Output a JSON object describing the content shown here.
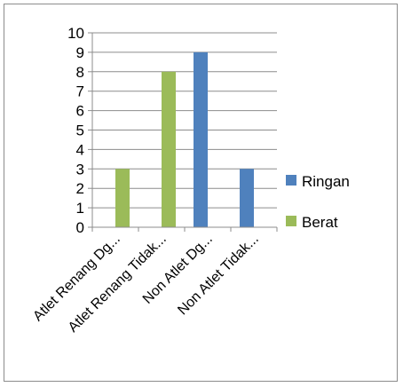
{
  "chart_data": {
    "type": "bar",
    "categories": [
      "Atlet Renang Dg...",
      "Atlet Renang Tidak...",
      "Non Atlet Dg...",
      "Non Atlet Tidak..."
    ],
    "series": [
      {
        "name": "Ringan",
        "color": "#4f81bd",
        "values": [
          0,
          0,
          9,
          3
        ]
      },
      {
        "name": "Berat",
        "color": "#9bbb59",
        "values": [
          3,
          8,
          0,
          0
        ]
      }
    ],
    "ylim": [
      0,
      10
    ],
    "yticks": [
      0,
      1,
      2,
      3,
      4,
      5,
      6,
      7,
      8,
      9,
      10
    ],
    "grid": true,
    "legend_position": "right",
    "colors": {
      "axis": "#8c8c8c",
      "grid": "#8c8c8c"
    }
  }
}
